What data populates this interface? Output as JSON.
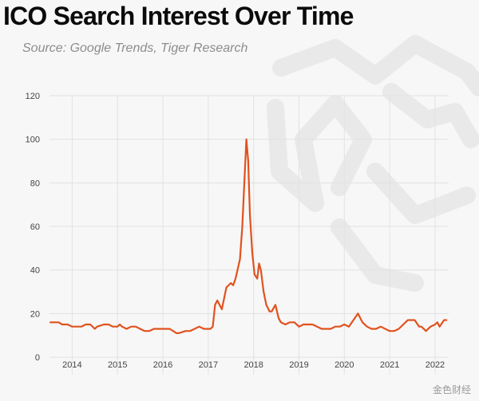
{
  "title": "ICO Search Interest Over Time",
  "subtitle": "Source: Google Trends, Tiger Research",
  "watermark": "金色财经",
  "colors": {
    "line": "#e0521e",
    "grid": "#e2e2e2",
    "axis_text": "#444444",
    "background": "#f7f7f7"
  },
  "chart_data": {
    "type": "line",
    "title": "ICO Search Interest Over Time",
    "subtitle": "Source: Google Trends, Tiger Research",
    "xlabel": "",
    "ylabel": "",
    "ylim": [
      0,
      120
    ],
    "yticks": [
      "0",
      "20",
      "40",
      "60",
      "80",
      "100",
      "120"
    ],
    "xticks": [
      "2014",
      "2015",
      "2016",
      "2017",
      "2018",
      "2019",
      "2020",
      "2021",
      "2022"
    ],
    "xlim": [
      2013.5,
      2022.3
    ],
    "grid": true,
    "legend": "none",
    "series": [
      {
        "color": "#e0521e",
        "x": [
          2013.52,
          2013.7,
          2013.78,
          2013.9,
          2014.0,
          2014.2,
          2014.3,
          2014.4,
          2014.5,
          2014.55,
          2014.7,
          2014.8,
          2014.9,
          2015.0,
          2015.05,
          2015.1,
          2015.2,
          2015.3,
          2015.4,
          2015.5,
          2015.6,
          2015.7,
          2015.8,
          2015.9,
          2016.1,
          2016.15,
          2016.3,
          2016.35,
          2016.5,
          2016.6,
          2016.7,
          2016.8,
          2016.9,
          2017.0,
          2017.05,
          2017.1,
          2017.15,
          2017.2,
          2017.3,
          2017.4,
          2017.5,
          2017.55,
          2017.6,
          2017.7,
          2017.75,
          2017.8,
          2017.84,
          2017.88,
          2017.92,
          2017.97,
          2018.02,
          2018.08,
          2018.12,
          2018.16,
          2018.22,
          2018.28,
          2018.35,
          2018.4,
          2018.48,
          2018.55,
          2018.6,
          2018.7,
          2018.8,
          2018.9,
          2019.0,
          2019.1,
          2019.2,
          2019.3,
          2019.4,
          2019.5,
          2019.6,
          2019.7,
          2019.8,
          2019.9,
          2020.0,
          2020.1,
          2020.2,
          2020.3,
          2020.4,
          2020.5,
          2020.6,
          2020.7,
          2020.8,
          2020.9,
          2021.0,
          2021.1,
          2021.2,
          2021.3,
          2021.4,
          2021.5,
          2021.55,
          2021.65,
          2021.7,
          2021.8,
          2021.9,
          2022.0,
          2022.05,
          2022.1,
          2022.2,
          2022.25
        ],
        "y": [
          16,
          16,
          15,
          15,
          14,
          14,
          15,
          15,
          13,
          14,
          15,
          15,
          14,
          14,
          15,
          14,
          13,
          14,
          14,
          13,
          12,
          12,
          13,
          13,
          13,
          13,
          11,
          11,
          12,
          12,
          13,
          14,
          13,
          13,
          13,
          14,
          24,
          26,
          22,
          32,
          34,
          33,
          36,
          45,
          60,
          82,
          100,
          90,
          65,
          48,
          38,
          36,
          43,
          40,
          30,
          24,
          21,
          21,
          24,
          18,
          16,
          15,
          16,
          16,
          14,
          15,
          15,
          15,
          14,
          13,
          13,
          13,
          14,
          14,
          15,
          14,
          17,
          20,
          16,
          14,
          13,
          13,
          14,
          13,
          12,
          12,
          13,
          15,
          17,
          17,
          17,
          14,
          14,
          12,
          14,
          15,
          16,
          14,
          17,
          17
        ]
      }
    ]
  }
}
